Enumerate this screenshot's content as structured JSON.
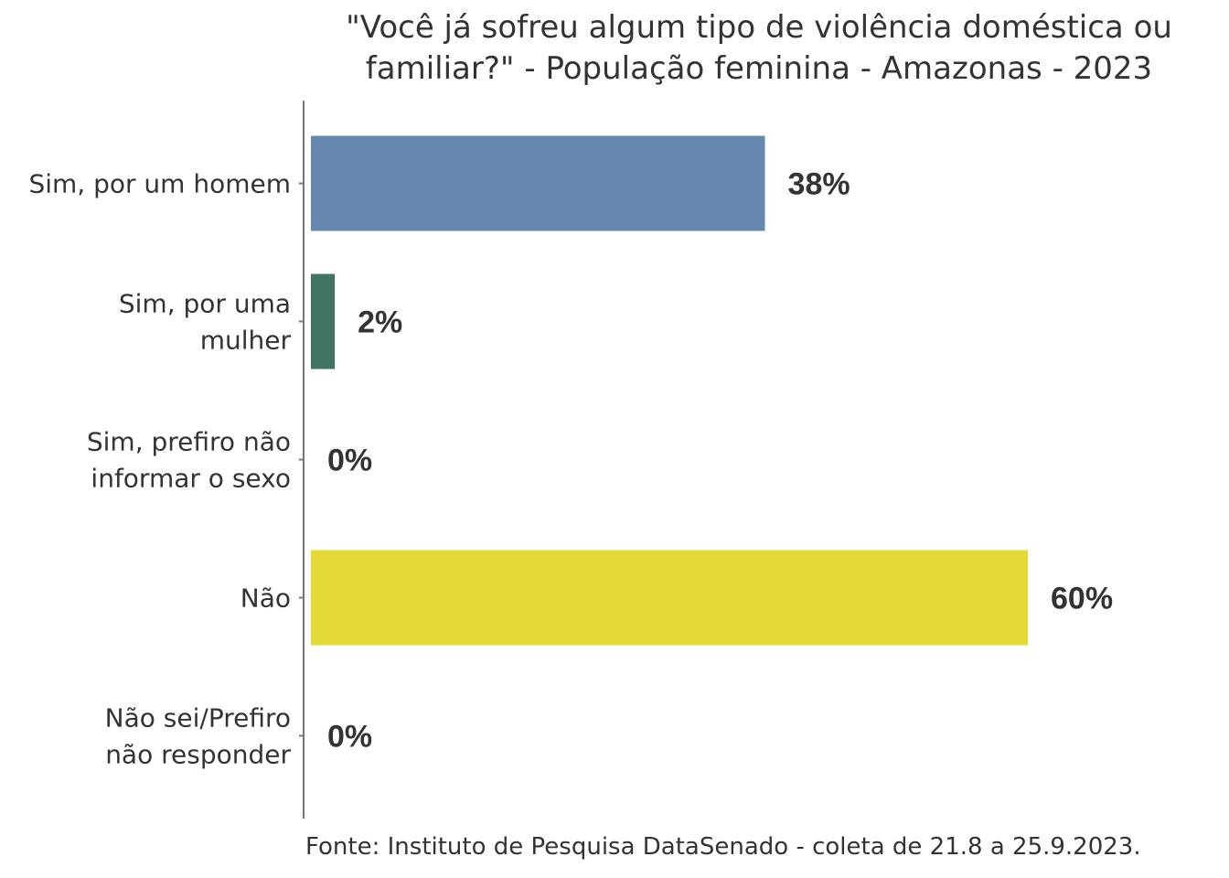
{
  "chart_data": {
    "type": "bar",
    "orientation": "horizontal",
    "title": "\"Você já sofreu algum tipo de violência doméstica ou\nfamiliar?\" - População feminina - Amazonas - 2023",
    "categories": [
      "Sim, por um homem",
      "Sim, por uma\nmulher",
      "Sim, prefiro não\ninformar o sexo",
      "Não",
      "Não sei/Prefiro\nnão responder"
    ],
    "values": [
      38,
      2,
      0,
      60,
      0
    ],
    "value_labels": [
      "38%",
      "2%",
      "0%",
      "60%",
      "0%"
    ],
    "colors": [
      "#6688b0",
      "#417462",
      "#9c9c9c",
      "#e4d935",
      "#bbbbbb"
    ],
    "unit": "%",
    "xlim": [
      0,
      60
    ],
    "xlabel": "",
    "ylabel": "",
    "grid": false,
    "legend": "none",
    "source": "Fonte: Instituto de Pesquisa DataSenado - coleta de 21.8 a 25.9.2023."
  }
}
